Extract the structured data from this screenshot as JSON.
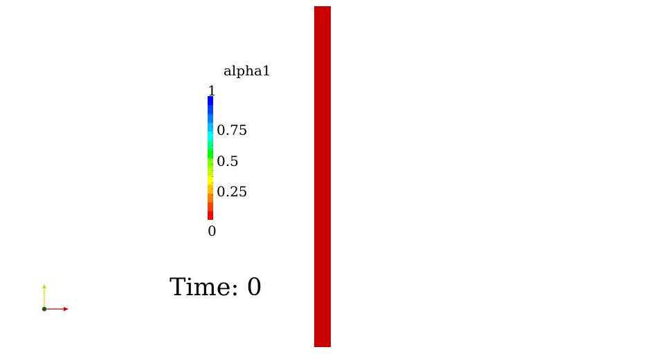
{
  "legend": {
    "title": "alpha1",
    "ticks": [
      {
        "value": 1,
        "label": "1"
      },
      {
        "value": 0.75,
        "label": "0.75"
      },
      {
        "value": 0.5,
        "label": "0.5"
      },
      {
        "value": 0.25,
        "label": "0.25"
      },
      {
        "value": 0,
        "label": "0"
      }
    ],
    "colormap": [
      "#ff0000",
      "#ff4000",
      "#ff8000",
      "#ffbf00",
      "#ffff00",
      "#bfff00",
      "#80ff00",
      "#00ff00",
      "#00ff80",
      "#00ffff",
      "#00bfff",
      "#0080ff",
      "#0040ff",
      "#0000ff"
    ],
    "range": [
      0,
      1
    ]
  },
  "time": {
    "text": "Time: 0"
  },
  "domain": {
    "fill_color": "#c80000",
    "value": 0
  },
  "axes": {
    "x_color": "#cc0000",
    "y_color": "#d4d400",
    "origin_color": "#1a5c1a"
  }
}
